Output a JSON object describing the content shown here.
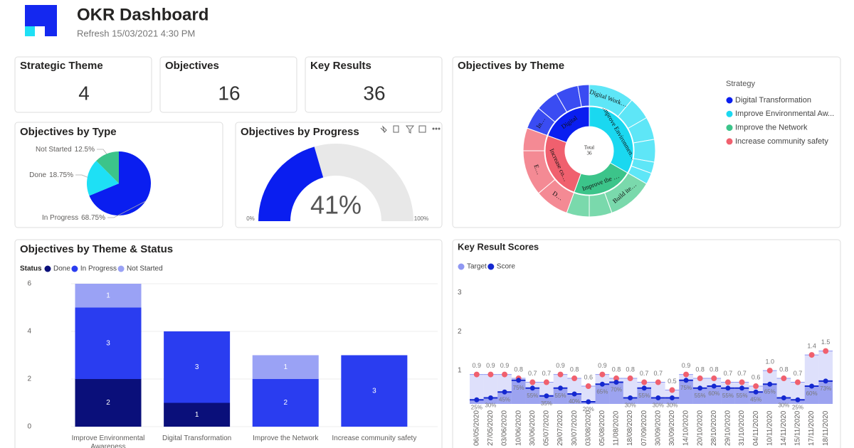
{
  "header": {
    "title": "OKR Dashboard",
    "refresh": "Refresh 15/03/2021 4:30 PM"
  },
  "cards": [
    {
      "title": "Strategic Theme",
      "value": 4
    },
    {
      "title": "Objectives",
      "value": 16
    },
    {
      "title": "Key Results",
      "value": 36
    }
  ],
  "chart_data": [
    {
      "type": "pie",
      "title": "Objectives by Type",
      "categories": [
        "In Progress",
        "Done",
        "Not Started"
      ],
      "values": [
        68.75,
        18.75,
        12.5
      ],
      "value_labels": [
        "68.75%",
        "18.75%",
        "12.5%"
      ],
      "colors": [
        "#0a1ef0",
        "#1ee0f5",
        "#3cc48a"
      ]
    },
    {
      "type": "gauge",
      "title": "Objectives by Progress",
      "value": 41,
      "value_label": "41%",
      "color": "#0a1ef0",
      "ylim": [
        0,
        100
      ],
      "yticks": [
        {
          "value": 0,
          "label": "0%"
        },
        {
          "value": 100,
          "label": "100%"
        }
      ]
    },
    {
      "type": "sunburst",
      "title": "Objectives by Theme",
      "legend_title": "Strategy",
      "center_label": "Total",
      "center_value": 36,
      "series": [
        {
          "name": "Digital Transformation",
          "color": "#0a1ef0",
          "outer_color": "#3a4cf2",
          "value": 7,
          "label": "Digital",
          "children": [
            {
              "label": "In…",
              "value": 2
            },
            {
              "label": null,
              "value": 2
            },
            {
              "label": null,
              "value": 2
            },
            {
              "label": null,
              "value": 1
            }
          ]
        },
        {
          "name": "Improve Environmental Aw...",
          "color": "#1ad8f0",
          "outer_color": "#5ee6f7",
          "value": 12,
          "label": "Improve Environmen…",
          "children": [
            {
              "label": "Digital Work…",
              "value": 4
            },
            {
              "label": null,
              "value": 2
            },
            {
              "label": null,
              "value": 2
            },
            {
              "label": null,
              "value": 2
            },
            {
              "label": null,
              "value": 1
            },
            {
              "label": null,
              "value": 1
            }
          ]
        },
        {
          "name": "Improve the Network",
          "color": "#3cc48a",
          "outer_color": "#7ad9ac",
          "value": 8,
          "label": "Improve the …",
          "children": [
            {
              "label": "Build ite…",
              "value": 4
            },
            {
              "label": null,
              "value": 2
            },
            {
              "label": null,
              "value": 2
            }
          ]
        },
        {
          "name": "Increase community safety",
          "color": "#f0606e",
          "outer_color": "#f48a94",
          "value": 9,
          "label": "Increase co…",
          "children": [
            {
              "label": "D…",
              "value": 3
            },
            {
              "label": "E…",
              "value": 4
            },
            {
              "label": null,
              "value": 2
            }
          ]
        }
      ]
    },
    {
      "type": "stacked_bar",
      "title": "Objectives by Theme & Status",
      "legend_title": "Status",
      "categories": [
        "Improve Environmental Awareness",
        "Digital Transformation",
        "Improve the Network",
        "Increase community safety"
      ],
      "series": [
        {
          "name": "Done",
          "color": "#0a0f7a",
          "values": [
            2,
            1,
            null,
            null
          ]
        },
        {
          "name": "In Progress",
          "color": "#2a3df0",
          "values": [
            3,
            3,
            2,
            3
          ]
        },
        {
          "name": "Not Started",
          "color": "#9aa2f5",
          "values": [
            1,
            null,
            1,
            null
          ]
        }
      ],
      "ylim": [
        0,
        6
      ],
      "yticks": [
        0,
        2,
        4,
        6
      ],
      "grid": true
    },
    {
      "type": "step",
      "title": "Key Result Scores",
      "categories": [
        "06/05/2020",
        "27/05/2020",
        "03/06/2020",
        "10/06/2020",
        "30/06/2020",
        "05/07/2020",
        "29/07/2020",
        "30/07/2020",
        "03/08/2020",
        "05/08/2020",
        "11/08/2020",
        "18/08/2020",
        "07/09/2020",
        "30/09/2020",
        "30/09/2020",
        "14/10/2020",
        "20/10/2020",
        "28/10/2020",
        "29/10/2020",
        "31/10/2020",
        "04/11/2020",
        "10/11/2020",
        "14/11/2020",
        "15/11/2020",
        "17/11/2020",
        "18/11/2020"
      ],
      "series": [
        {
          "name": "Target",
          "color": "#8f97f2",
          "marker_color": "#f0606e",
          "values": [
            0.9,
            0.9,
            0.9,
            0.8,
            0.7,
            0.7,
            0.9,
            0.8,
            0.6,
            0.9,
            0.8,
            0.8,
            0.7,
            0.7,
            0.5,
            0.9,
            0.8,
            0.8,
            0.7,
            0.7,
            0.6,
            1.0,
            0.8,
            0.7,
            1.4,
            1.5
          ],
          "value_labels": [
            "0.9",
            "0.9",
            "0.9",
            "0.8",
            "0.7",
            "0.7",
            "0.9",
            "0.8",
            "0.6",
            "0.9",
            "0.8",
            "0.8",
            "0.7",
            "0.7",
            "0.5",
            "0.9",
            "0.8",
            "0.8",
            "0.7",
            "0.7",
            "0.6",
            "1.0",
            "0.8",
            "0.7",
            "1.4",
            "1.5"
          ]
        },
        {
          "name": "Score",
          "color": "#1428d0",
          "marker_color": "#1428d0",
          "values": [
            0.25,
            0.3,
            0.45,
            0.75,
            0.55,
            0.35,
            0.55,
            0.4,
            0.2,
            0.65,
            0.7,
            0.3,
            0.55,
            0.3,
            0.3,
            0.75,
            0.55,
            0.6,
            0.55,
            0.55,
            0.45,
            0.65,
            0.3,
            0.25,
            0.6,
            0.73
          ],
          "value_labels": [
            "25%",
            "30%",
            "45%",
            "75%",
            "55%",
            "35%",
            "55%",
            "40%",
            "20%",
            "65%",
            "70%",
            "30%",
            "55%",
            "30%",
            "30%",
            "75%",
            "55%",
            "60%",
            "55%",
            "55%",
            "45%",
            "65%",
            "30%",
            "25%",
            "60%",
            "73%"
          ]
        }
      ],
      "ylim": [
        0,
        3.35
      ],
      "yticks": [
        1,
        2,
        3
      ],
      "grid": false
    }
  ]
}
